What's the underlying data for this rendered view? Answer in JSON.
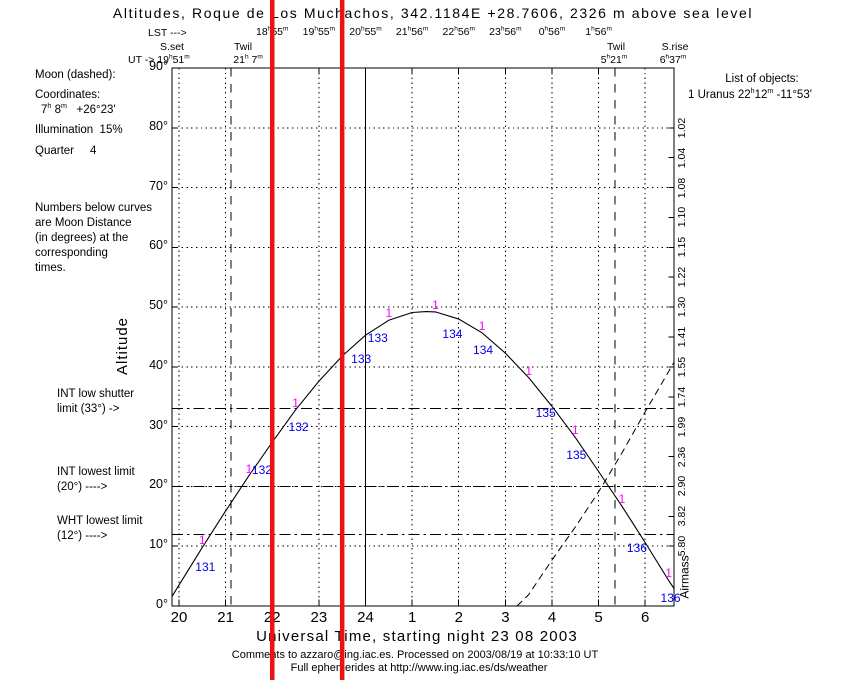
{
  "title": "Altitudes, Roque de Los Muchachos, 342.1184E +28.7606, 2326 m above sea level",
  "colors": {
    "background": "#ffffff",
    "axis": "#000000",
    "curve": "#000000",
    "red_marker": "#ee1111",
    "distance_blue": "#0000ee",
    "marker_magenta": "#ff00ff"
  },
  "top_axis": {
    "lst_prefix": "LST --->",
    "lst_labels": [
      {
        "ut": 22,
        "text": "18h55m"
      },
      {
        "ut": 23,
        "text": "19h55m"
      },
      {
        "ut": 24,
        "text": "20h55m"
      },
      {
        "ut": 25,
        "text": "21h56m"
      },
      {
        "ut": 26,
        "text": "22h56m"
      },
      {
        "ut": 27,
        "text": "23h56m"
      },
      {
        "ut": 28,
        "text": "0h56m"
      },
      {
        "ut": 29,
        "text": "1h56m"
      }
    ],
    "events": [
      {
        "name": "S.set",
        "time": "UT -> 19h51m"
      },
      {
        "name": "Twil",
        "time": "21h 7m"
      },
      {
        "name": "Twil",
        "time": "5h21m"
      },
      {
        "name": "S.rise",
        "time": "6h37m"
      }
    ]
  },
  "left_panel": {
    "moon_legend": "Moon (dashed):",
    "coords_heading": "Coordinates:",
    "coords_value": "7h 8m   +26°23'",
    "illumination": "Illumination  15%",
    "quarter": "Quarter     4",
    "note_lines": [
      "Numbers below curves",
      "are Moon Distance",
      "(in degrees) at the",
      "corresponding",
      "times."
    ],
    "limits_text": [
      {
        "line1": "INT low shutter",
        "line2": "limit (33°) ->"
      },
      {
        "line1": "INT lowest limit",
        "line2": "(20°) ---->"
      },
      {
        "line1": "WHT lowest limit",
        "line2": "(12°) ---->"
      }
    ]
  },
  "right_panel": {
    "heading": "List of objects:",
    "object_entry": "1 Uranus 22h12m -11°53'"
  },
  "footer": {
    "line1": "Comments to azzaro@ing.iac.es. Processed on 2003/08/19 at 10:33:10 UT",
    "line2": "Full ephemerides at http://www.ing.iac.es/ds/weather"
  },
  "chart_data": {
    "type": "line",
    "title": "Altitudes, Roque de Los Muchachos, 342.1184E +28.7606, 2326 m above sea level",
    "xlabel": "Universal Time, starting night 23 08 2003",
    "ylabel": "Altitude",
    "y2label": "Airmass",
    "x_unit": "UT hours, values >24 are after midnight",
    "x_range": [
      19.85,
      30.617
    ],
    "ylim": [
      0,
      90
    ],
    "grid": "dotted every hour (x) and every 10 deg (y)",
    "x_ticks": [
      {
        "ut": 20,
        "label": "20"
      },
      {
        "ut": 21,
        "label": "21"
      },
      {
        "ut": 22,
        "label": "22"
      },
      {
        "ut": 23,
        "label": "23"
      },
      {
        "ut": 24,
        "label": "24"
      },
      {
        "ut": 25,
        "label": "1"
      },
      {
        "ut": 26,
        "label": "2"
      },
      {
        "ut": 27,
        "label": "3"
      },
      {
        "ut": 28,
        "label": "4"
      },
      {
        "ut": 29,
        "label": "5"
      },
      {
        "ut": 30,
        "label": "6"
      }
    ],
    "y_ticks": [
      {
        "alt": 90,
        "label": "90°"
      },
      {
        "alt": 80,
        "label": "80°"
      },
      {
        "alt": 70,
        "label": "70°"
      },
      {
        "alt": 60,
        "label": "60°"
      },
      {
        "alt": 50,
        "label": "50°"
      },
      {
        "alt": 40,
        "label": "40°"
      },
      {
        "alt": 30,
        "label": "30°"
      },
      {
        "alt": 20,
        "label": "20°"
      },
      {
        "alt": 10,
        "label": "10°"
      },
      {
        "alt": 0,
        "label": "0°"
      }
    ],
    "airmass_ticks": [
      {
        "alt": 80,
        "value": "1.02"
      },
      {
        "alt": 75,
        "value": "1.04"
      },
      {
        "alt": 70,
        "value": "1.08"
      },
      {
        "alt": 65,
        "value": "1.10"
      },
      {
        "alt": 60,
        "value": "1.15"
      },
      {
        "alt": 55,
        "value": "1.22"
      },
      {
        "alt": 50,
        "value": "1.30"
      },
      {
        "alt": 45,
        "value": "1.41"
      },
      {
        "alt": 40,
        "value": "1.55"
      },
      {
        "alt": 35,
        "value": "1.74"
      },
      {
        "alt": 30,
        "value": "1.99"
      },
      {
        "alt": 25,
        "value": "2.36"
      },
      {
        "alt": 20,
        "value": "2.90"
      },
      {
        "alt": 15,
        "value": "3.82"
      },
      {
        "alt": 10,
        "value": "5.80"
      }
    ],
    "limit_lines_deg": [
      33,
      20,
      12
    ],
    "sunset_ut": 19.85,
    "sunrise_ut": 30.617,
    "twilight_ut": [
      21.117,
      29.35
    ],
    "midnight_ut": 24,
    "red_markers_ut": [
      22.0,
      23.5
    ],
    "series": [
      {
        "name": "1 Uranus 22h12m -11°53'",
        "marker": "1",
        "points": [
          [
            19.85,
            1.6
          ],
          [
            20,
            3.5
          ],
          [
            20.5,
            9.8
          ],
          [
            21,
            15.9
          ],
          [
            21.5,
            21.8
          ],
          [
            22,
            27.4
          ],
          [
            22.5,
            32.8
          ],
          [
            23,
            37.6
          ],
          [
            23.5,
            41.8
          ],
          [
            24,
            45.3
          ],
          [
            24.5,
            47.8
          ],
          [
            25,
            49.1
          ],
          [
            25.3,
            49.25
          ],
          [
            25.5,
            49.2
          ],
          [
            26,
            48.0
          ],
          [
            26.5,
            45.7
          ],
          [
            27,
            42.3
          ],
          [
            27.5,
            38.2
          ],
          [
            28,
            33.4
          ],
          [
            28.5,
            28.2
          ],
          [
            29,
            22.5
          ],
          [
            29.5,
            16.7
          ],
          [
            30,
            10.6
          ],
          [
            30.5,
            4.3
          ],
          [
            30.62,
            2.9
          ]
        ]
      }
    ],
    "moon": {
      "name": "Moon (dashed)",
      "points": [
        [
          27.25,
          0
        ],
        [
          27.5,
          1.9
        ],
        [
          28,
          7.7
        ],
        [
          28.5,
          13.2
        ],
        [
          29,
          19.1
        ],
        [
          29.5,
          25.6
        ],
        [
          30,
          32.5
        ],
        [
          30.62,
          40.8
        ]
      ]
    },
    "moon_distance_labels": [
      {
        "ut": 20.5,
        "deg": "131"
      },
      {
        "ut": 21.5,
        "deg": "132"
      },
      {
        "ut": 22.5,
        "deg": "132"
      },
      {
        "ut": 23.5,
        "deg": "133"
      },
      {
        "ut": 24.5,
        "deg": "133"
      },
      {
        "ut": 25.5,
        "deg": "134"
      },
      {
        "ut": 26.5,
        "deg": "134"
      },
      {
        "ut": 27.5,
        "deg": "135"
      },
      {
        "ut": 28.5,
        "deg": "135"
      },
      {
        "ut": 29.5,
        "deg": "136"
      },
      {
        "ut": 30.5,
        "deg": "136"
      }
    ]
  }
}
